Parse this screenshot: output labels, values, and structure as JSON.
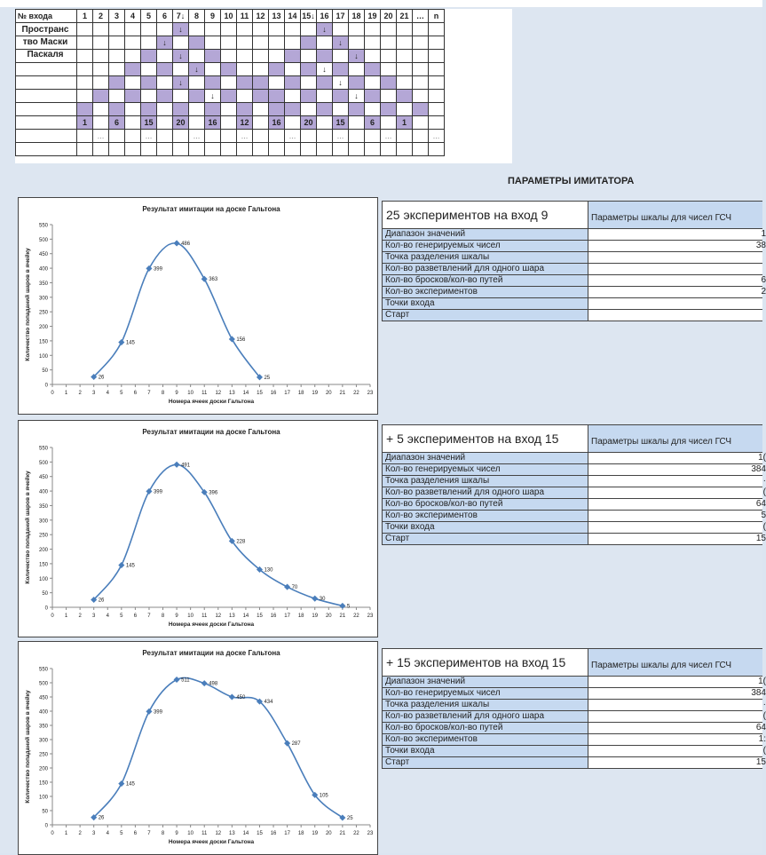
{
  "mask": {
    "header_label": "№ входа",
    "headers": [
      "1",
      "2",
      "3",
      "4",
      "5",
      "6",
      "7↓",
      "8",
      "9",
      "10",
      "11",
      "12",
      "13",
      "14",
      "15↓",
      "16",
      "17",
      "18",
      "19",
      "20",
      "21",
      "…",
      "n"
    ],
    "title_lines": [
      "Пространс",
      "тво Маски",
      "Паскаля"
    ],
    "arrow": "↓",
    "bottom_values": [
      {
        "col": 0,
        "text": "1"
      },
      {
        "col": 4,
        "text": "6"
      },
      {
        "col": 8,
        "text": "15"
      },
      {
        "col": 12,
        "text": "20"
      },
      {
        "col": 16,
        "text": "16"
      },
      {
        "col": 20,
        "text": "12"
      },
      {
        "col": 24,
        "text": "16"
      },
      {
        "col": 28,
        "text": "20"
      },
      {
        "col": 32,
        "text": "15"
      },
      {
        "col": 36,
        "text": "6"
      },
      {
        "col": 40,
        "text": "1"
      }
    ],
    "dots": "…"
  },
  "params_title": "ПАРАМЕТРЫ ИМИТАТОРА",
  "chart_data": [
    {
      "type": "line",
      "title": "Результат имитации на доске Гальтона",
      "xlabel": "Номера ячеек доски Гальтона",
      "ylabel": "Количество попаданий шаров в ячейку",
      "xlim": [
        0,
        23
      ],
      "ylim": [
        0,
        550
      ],
      "xticks": [
        0,
        1,
        2,
        3,
        4,
        5,
        6,
        7,
        8,
        9,
        10,
        11,
        12,
        13,
        14,
        15,
        16,
        17,
        18,
        19,
        20,
        21,
        22,
        23
      ],
      "yticks": [
        0,
        50,
        100,
        150,
        200,
        250,
        300,
        350,
        400,
        450,
        500,
        550
      ],
      "x": [
        3,
        5,
        7,
        9,
        11,
        13,
        15
      ],
      "y": [
        26,
        145,
        399,
        486,
        363,
        156,
        25
      ],
      "grid": false,
      "legend": "none"
    },
    {
      "type": "line",
      "title": "Результат имитации на доске Гальтона",
      "xlabel": "Номера ячеек доски Гальтона",
      "ylabel": "Количество попаданий шаров в ячейку",
      "xlim": [
        0,
        23
      ],
      "ylim": [
        0,
        550
      ],
      "xticks": [
        0,
        1,
        2,
        3,
        4,
        5,
        6,
        7,
        8,
        9,
        10,
        11,
        12,
        13,
        14,
        15,
        16,
        17,
        18,
        19,
        20,
        21,
        22,
        23
      ],
      "yticks": [
        0,
        50,
        100,
        150,
        200,
        250,
        300,
        350,
        400,
        450,
        500,
        550
      ],
      "x": [
        3,
        5,
        7,
        9,
        11,
        13,
        15,
        17,
        19,
        21
      ],
      "y": [
        26,
        145,
        399,
        491,
        396,
        228,
        130,
        70,
        30,
        5
      ],
      "grid": false,
      "legend": "none"
    },
    {
      "type": "line",
      "title": "Результат имитации на доске Гальтона",
      "xlabel": "Номера ячеек доски Гальтона",
      "ylabel": "Количество попаданий шаров в ячейку",
      "xlim": [
        0,
        23
      ],
      "ylim": [
        0,
        550
      ],
      "xticks": [
        0,
        1,
        2,
        3,
        4,
        5,
        6,
        7,
        8,
        9,
        10,
        11,
        12,
        13,
        14,
        15,
        16,
        17,
        18,
        19,
        20,
        21,
        22,
        23
      ],
      "yticks": [
        0,
        50,
        100,
        150,
        200,
        250,
        300,
        350,
        400,
        450,
        500,
        550
      ],
      "x": [
        3,
        5,
        7,
        9,
        11,
        13,
        15,
        17,
        19,
        21
      ],
      "y": [
        26,
        145,
        399,
        511,
        498,
        450,
        434,
        287,
        105,
        25
      ],
      "grid": false,
      "legend": "none"
    }
  ],
  "param_tables": [
    {
      "heading": "25 экспериментов на вход 9",
      "column_header": "Параметры шкалы для чисел ГСЧ",
      "rows": [
        {
          "label": "Диапазон значений",
          "value": "1"
        },
        {
          "label": "Кол-во генерируемых чисел",
          "value": "38"
        },
        {
          "label": "Точка разделения шкалы",
          "value": ""
        },
        {
          "label": "Кол-во разветвлений для одного шара",
          "value": ""
        },
        {
          "label": "Кол-во бросков/кол-во путей",
          "value": "6"
        },
        {
          "label": "Кол-во экспериментов",
          "value": "2"
        },
        {
          "label": "Точки входа",
          "value": ""
        },
        {
          "label": "Старт",
          "value": ""
        }
      ]
    },
    {
      "heading": "+ 5 экспериментов на вход 15",
      "column_header": "Параметры шкалы для чисел ГСЧ",
      "rows": [
        {
          "label": "Диапазон значений",
          "value": "1("
        },
        {
          "label": "Кол-во генерируемых чисел",
          "value": "384"
        },
        {
          "label": "Точка разделения шкалы",
          "value": "·"
        },
        {
          "label": "Кол-во разветвлений для одного шара",
          "value": "("
        },
        {
          "label": "Кол-во бросков/кол-во путей",
          "value": "64"
        },
        {
          "label": "Кол-во экспериментов",
          "value": "5"
        },
        {
          "label": "Точки входа",
          "value": "("
        },
        {
          "label": "Старт",
          "value": "15"
        }
      ]
    },
    {
      "heading": "+ 15 экспериментов на вход 15",
      "column_header": "Параметры шкалы для чисел ГСЧ",
      "rows": [
        {
          "label": "Диапазон значений",
          "value": "1("
        },
        {
          "label": "Кол-во генерируемых чисел",
          "value": "384"
        },
        {
          "label": "Точка разделения шкалы",
          "value": "·"
        },
        {
          "label": "Кол-во разветвлений для одного шара",
          "value": "("
        },
        {
          "label": "Кол-во бросков/кол-во путей",
          "value": "64"
        },
        {
          "label": "Кол-во экспериментов",
          "value": "1:"
        },
        {
          "label": "Точки входа",
          "value": "("
        },
        {
          "label": "Старт",
          "value": "15"
        }
      ]
    }
  ]
}
